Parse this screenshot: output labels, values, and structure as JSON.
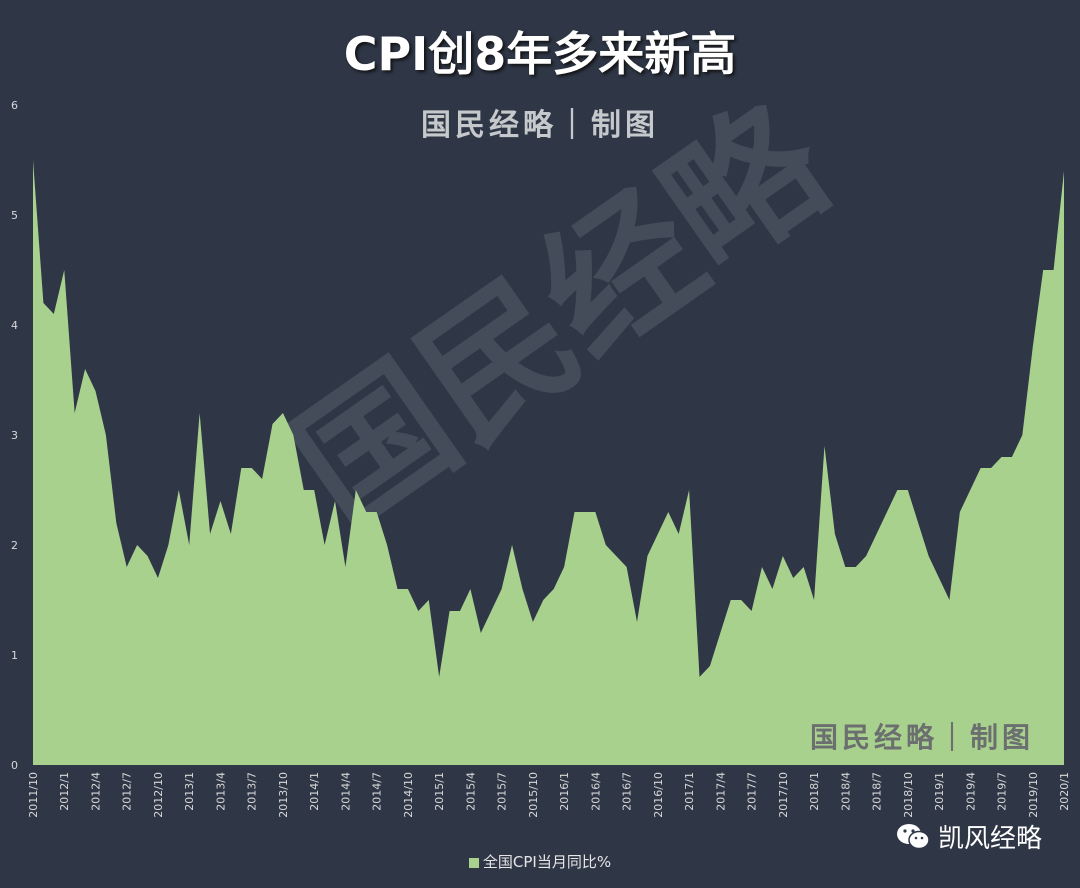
{
  "title": "CPI创8年多来新高",
  "credit_top": "国民经略｜制图",
  "credit_bottom": "国民经略｜制图",
  "watermark": "国民经略",
  "brand": "凯风经略",
  "colors": {
    "background": "#2f3747",
    "area": "#a9d18e"
  },
  "chart_data": {
    "type": "area",
    "title": "CPI创8年多来新高",
    "xlabel": "",
    "ylabel": "",
    "ylim": [
      0,
      6
    ],
    "y_ticks": [
      "0",
      "1",
      "2",
      "3",
      "4",
      "5",
      "6"
    ],
    "grid": false,
    "legend": "bottom",
    "x_tick_labels": [
      "2011/10",
      "2012/1",
      "2012/4",
      "2012/7",
      "2012/10",
      "2013/1",
      "2013/4",
      "2013/7",
      "2013/10",
      "2014/1",
      "2014/4",
      "2014/7",
      "2014/10",
      "2015/1",
      "2015/4",
      "2015/7",
      "2015/10",
      "2016/1",
      "2016/4",
      "2016/7",
      "2016/10",
      "2017/1",
      "2017/4",
      "2017/7",
      "2017/10",
      "2018/1",
      "2018/4",
      "2018/7",
      "2018/10",
      "2019/1",
      "2019/4",
      "2019/7",
      "2019/10",
      "2020/1"
    ],
    "series": [
      {
        "name": "全国CPI当月同比%",
        "values": [
          5.5,
          4.2,
          4.1,
          4.5,
          3.2,
          3.6,
          3.4,
          3.0,
          2.2,
          1.8,
          2.0,
          1.9,
          1.7,
          2.0,
          2.5,
          2.0,
          3.2,
          2.1,
          2.4,
          2.1,
          2.7,
          2.7,
          2.6,
          3.1,
          3.2,
          3.0,
          2.5,
          2.5,
          2.0,
          2.4,
          1.8,
          2.5,
          2.3,
          2.3,
          2.0,
          1.6,
          1.6,
          1.4,
          1.5,
          0.8,
          1.4,
          1.4,
          1.6,
          1.2,
          1.4,
          1.6,
          2.0,
          1.6,
          1.3,
          1.5,
          1.6,
          1.8,
          2.3,
          2.3,
          2.3,
          2.0,
          1.9,
          1.8,
          1.3,
          1.9,
          2.1,
          2.3,
          2.1,
          2.5,
          0.8,
          0.9,
          1.2,
          1.5,
          1.5,
          1.4,
          1.8,
          1.6,
          1.9,
          1.7,
          1.8,
          1.5,
          2.9,
          2.1,
          1.8,
          1.8,
          1.9,
          2.1,
          2.3,
          2.5,
          2.5,
          2.2,
          1.9,
          1.7,
          1.5,
          2.3,
          2.5,
          2.7,
          2.7,
          2.8,
          2.8,
          3.0,
          3.8,
          4.5,
          4.5,
          5.4
        ]
      }
    ]
  }
}
